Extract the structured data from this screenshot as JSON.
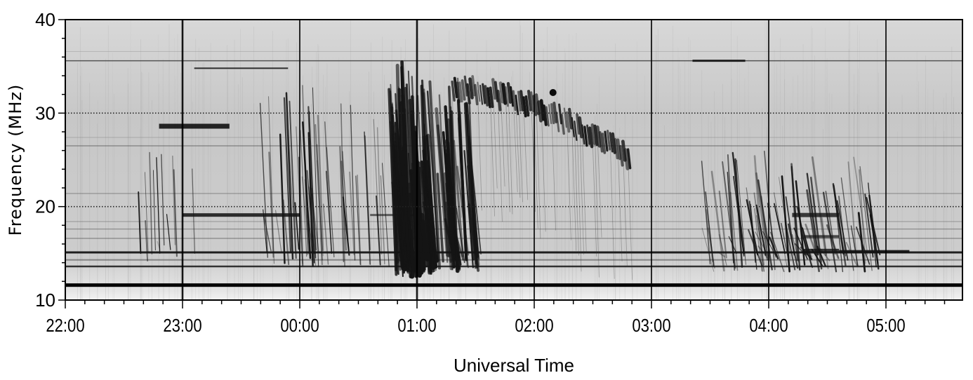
{
  "chart_data": {
    "type": "heatmap",
    "title": "",
    "xlabel": "Universal Time",
    "ylabel": "Frequency (MHz)",
    "x_ticks": [
      "22:00",
      "23:00",
      "00:00",
      "01:00",
      "02:00",
      "03:00",
      "04:00",
      "05:00"
    ],
    "y_ticks": [
      "10",
      "20",
      "30",
      "40"
    ],
    "y_tick_values": [
      10,
      20,
      30,
      40
    ],
    "ylim": [
      10,
      40
    ],
    "xlim_hours_from_start": [
      0,
      7.65
    ],
    "colormap": "grayscale (dark = high intensity)",
    "grid": true,
    "features": {
      "horizontal_interference_bands_mhz": [
        11.6,
        13.6,
        15.1,
        19.1,
        28.6,
        34.8,
        35.6
      ],
      "main_burst": {
        "start": "00:45",
        "end": "01:20",
        "freq_range_mhz": [
          12,
          35.5
        ]
      },
      "drifting_arc": {
        "start": "01:15",
        "end": "02:50",
        "freq_range_mhz": [
          26,
          33
        ]
      },
      "late_bursts": {
        "start": "03:20",
        "end": "04:55",
        "freq_range_mhz": [
          13,
          26
        ]
      },
      "early_bursts": {
        "start": "23:40",
        "end": "00:50",
        "freq_range_mhz": [
          13,
          33
        ]
      }
    }
  },
  "colors": {
    "background": "#c8c8c8",
    "emission": "#141414",
    "axis": "#000000"
  }
}
